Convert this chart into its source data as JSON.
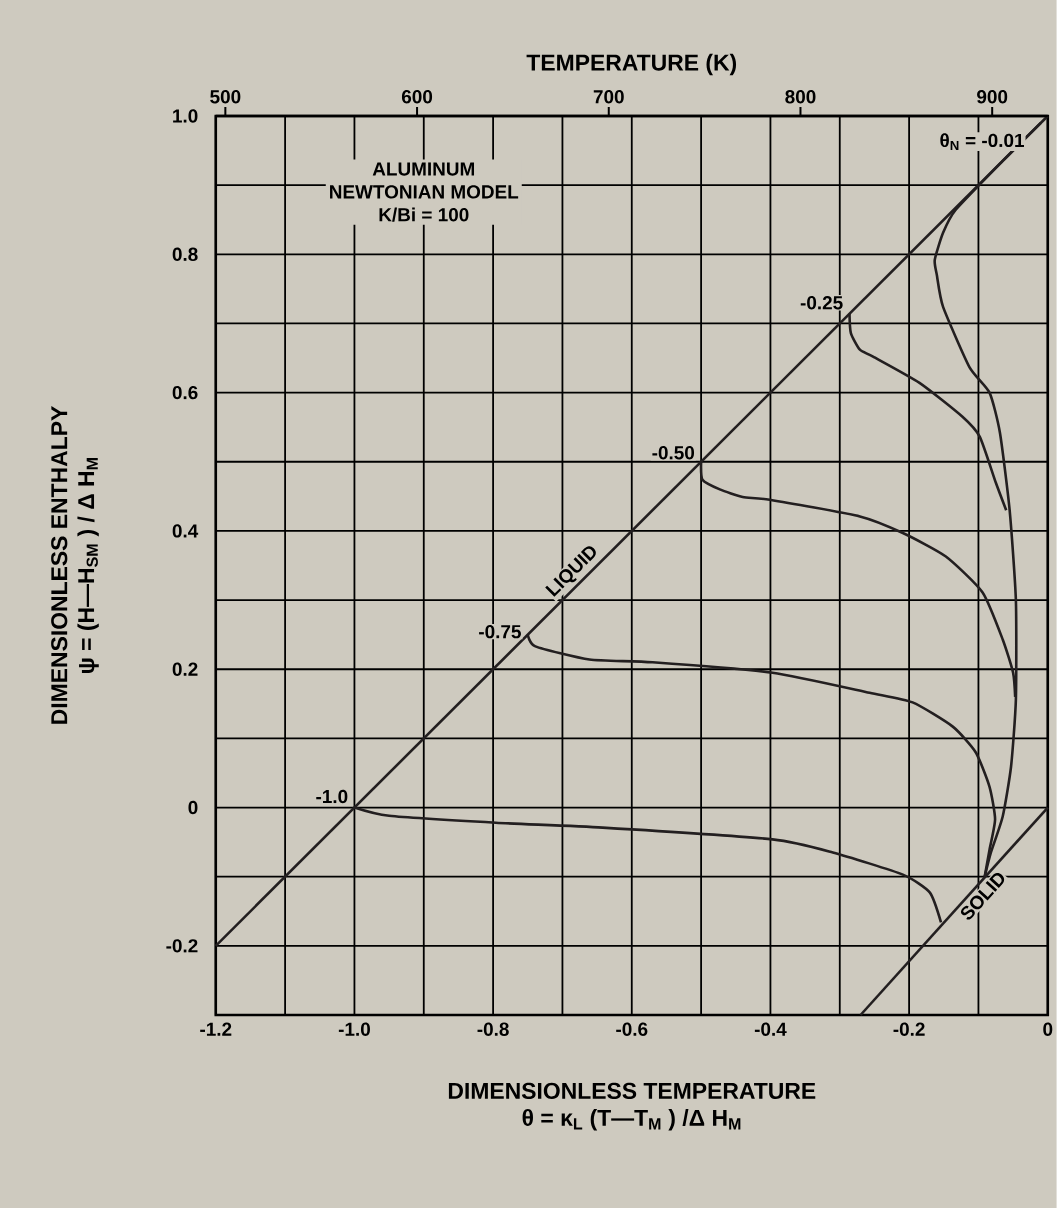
{
  "chart_data": {
    "type": "line",
    "xlabel": "DIMENSIONLESS TEMPERATURE",
    "ylabel": "DIMENSIONLESS ENTHALPY",
    "x2label": "TEMPERATURE (K)",
    "annotations": [
      "ALUMINUM",
      "NEWTONIAN MODEL",
      "K/Bi = 100",
      "θ = κ$_{L}$ (T—T$_{M}$ ) /Δ H$_{M}$",
      "ψ = (H—H$_{SM}$ ) / Δ H$_{M}$"
    ],
    "xlim": [
      -1.2,
      0
    ],
    "ylim": [
      -0.3,
      1.0
    ],
    "xticks": [
      -1.2,
      {
        "value": -1.1,
        "label": null
      },
      {
        "value": -1.0,
        "label": "-1.0"
      },
      {
        "value": -0.9,
        "label": null
      },
      -0.8,
      {
        "value": -0.7,
        "label": null
      },
      -0.6,
      {
        "value": -0.5,
        "label": null
      },
      -0.4,
      {
        "value": -0.3,
        "label": null
      },
      -0.2,
      {
        "value": -0.1,
        "label": null
      },
      0
    ],
    "yticks": [
      {
        "value": 1.0,
        "label": "1.0"
      },
      {
        "value": 0.9,
        "label": null
      },
      0.8,
      {
        "value": 0.7,
        "label": null
      },
      0.6,
      {
        "value": 0.5,
        "label": null
      },
      0.4,
      {
        "value": 0.3,
        "label": null
      },
      0.2,
      {
        "value": 0.1,
        "label": null
      },
      0,
      {
        "value": -0.1,
        "label": null
      },
      -0.2
    ],
    "x2lim": [
      495,
      929
    ],
    "x2ticks": [
      500,
      600,
      700,
      800,
      900
    ],
    "grid": true,
    "series": [
      {
        "name": "LIQUID",
        "color": "#231f20",
        "x": [
          -1.2,
          0
        ],
        "values": [
          -0.2,
          1.0
        ]
      },
      {
        "name": "SOLID",
        "color": "#231f20",
        "x": [
          -0.27,
          0
        ],
        "values": [
          -0.3,
          0
        ]
      },
      {
        "name": "θ$_{N}$ = -0.01",
        "color": "#231f20",
        "x": [
          -0.01,
          -0.065,
          -0.133,
          -0.151,
          -0.163,
          -0.16,
          -0.151,
          -0.113,
          -0.084,
          -0.069,
          -0.055,
          -0.046,
          -0.046,
          -0.053,
          -0.065,
          -0.082,
          -0.091
        ],
        "values": [
          0.99,
          0.935,
          0.864,
          0.831,
          0.792,
          0.77,
          0.724,
          0.637,
          0.6,
          0.542,
          0.43,
          0.3,
          0.156,
          0.059,
          -0.013,
          -0.065,
          -0.1
        ]
      },
      {
        "name": "-0.25",
        "color": "#231f20",
        "x": [
          -0.286,
          -0.284,
          -0.271,
          -0.252,
          -0.185,
          -0.123,
          -0.098,
          -0.075,
          -0.06
        ],
        "values": [
          0.714,
          0.686,
          0.662,
          0.652,
          0.614,
          0.565,
          0.536,
          0.47,
          0.43
        ]
      },
      {
        "name": "-0.50",
        "color": "#231f20",
        "x": [
          -0.5,
          -0.498,
          -0.473,
          -0.44,
          -0.401,
          -0.271,
          -0.209,
          -0.147,
          -0.094,
          -0.065,
          -0.05,
          -0.047
        ],
        "values": [
          0.5,
          0.474,
          0.46,
          0.449,
          0.445,
          0.421,
          0.397,
          0.363,
          0.311,
          0.243,
          0.195,
          0.16
        ]
      },
      {
        "name": "-0.75",
        "color": "#231f20",
        "x": [
          -0.75,
          -0.739,
          -0.661,
          -0.57,
          -0.397,
          -0.257,
          -0.195,
          -0.137,
          -0.104,
          -0.084,
          -0.076,
          -0.084,
          -0.091
        ],
        "values": [
          0.25,
          0.233,
          0.214,
          0.21,
          0.195,
          0.166,
          0.152,
          0.117,
          0.08,
          0.03,
          -0.017,
          -0.061,
          -0.1
        ]
      },
      {
        "name": "-1.0",
        "color": "#231f20",
        "x": [
          -1.0,
          -0.95,
          -0.796,
          -0.642,
          -0.397,
          -0.31,
          -0.209,
          -0.17,
          -0.154
        ],
        "values": [
          0,
          -0.012,
          -0.022,
          -0.029,
          -0.046,
          -0.065,
          -0.097,
          -0.123,
          -0.166
        ]
      }
    ]
  }
}
